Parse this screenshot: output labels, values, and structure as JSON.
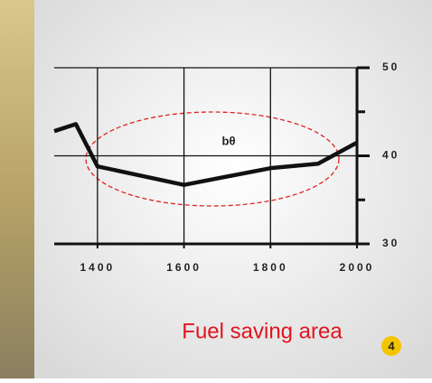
{
  "chart_data": {
    "type": "line",
    "x": [
      1300,
      1350,
      1400,
      1600,
      1800,
      1910,
      2000
    ],
    "series": [
      {
        "color": "#111111",
        "values": [
          42.8,
          43.6,
          38.8,
          36.7,
          38.6,
          39.1,
          41.5
        ]
      }
    ],
    "xlim": [
      1300,
      2000
    ],
    "xticks": [
      1400,
      1600,
      1800,
      2000
    ],
    "ylim": [
      30,
      50
    ],
    "yticks": [
      30,
      40,
      50
    ],
    "yticks_minor": [
      35,
      45
    ],
    "grid": true,
    "annotations": [
      "bθ",
      "Fuel saving area",
      "4"
    ]
  }
}
